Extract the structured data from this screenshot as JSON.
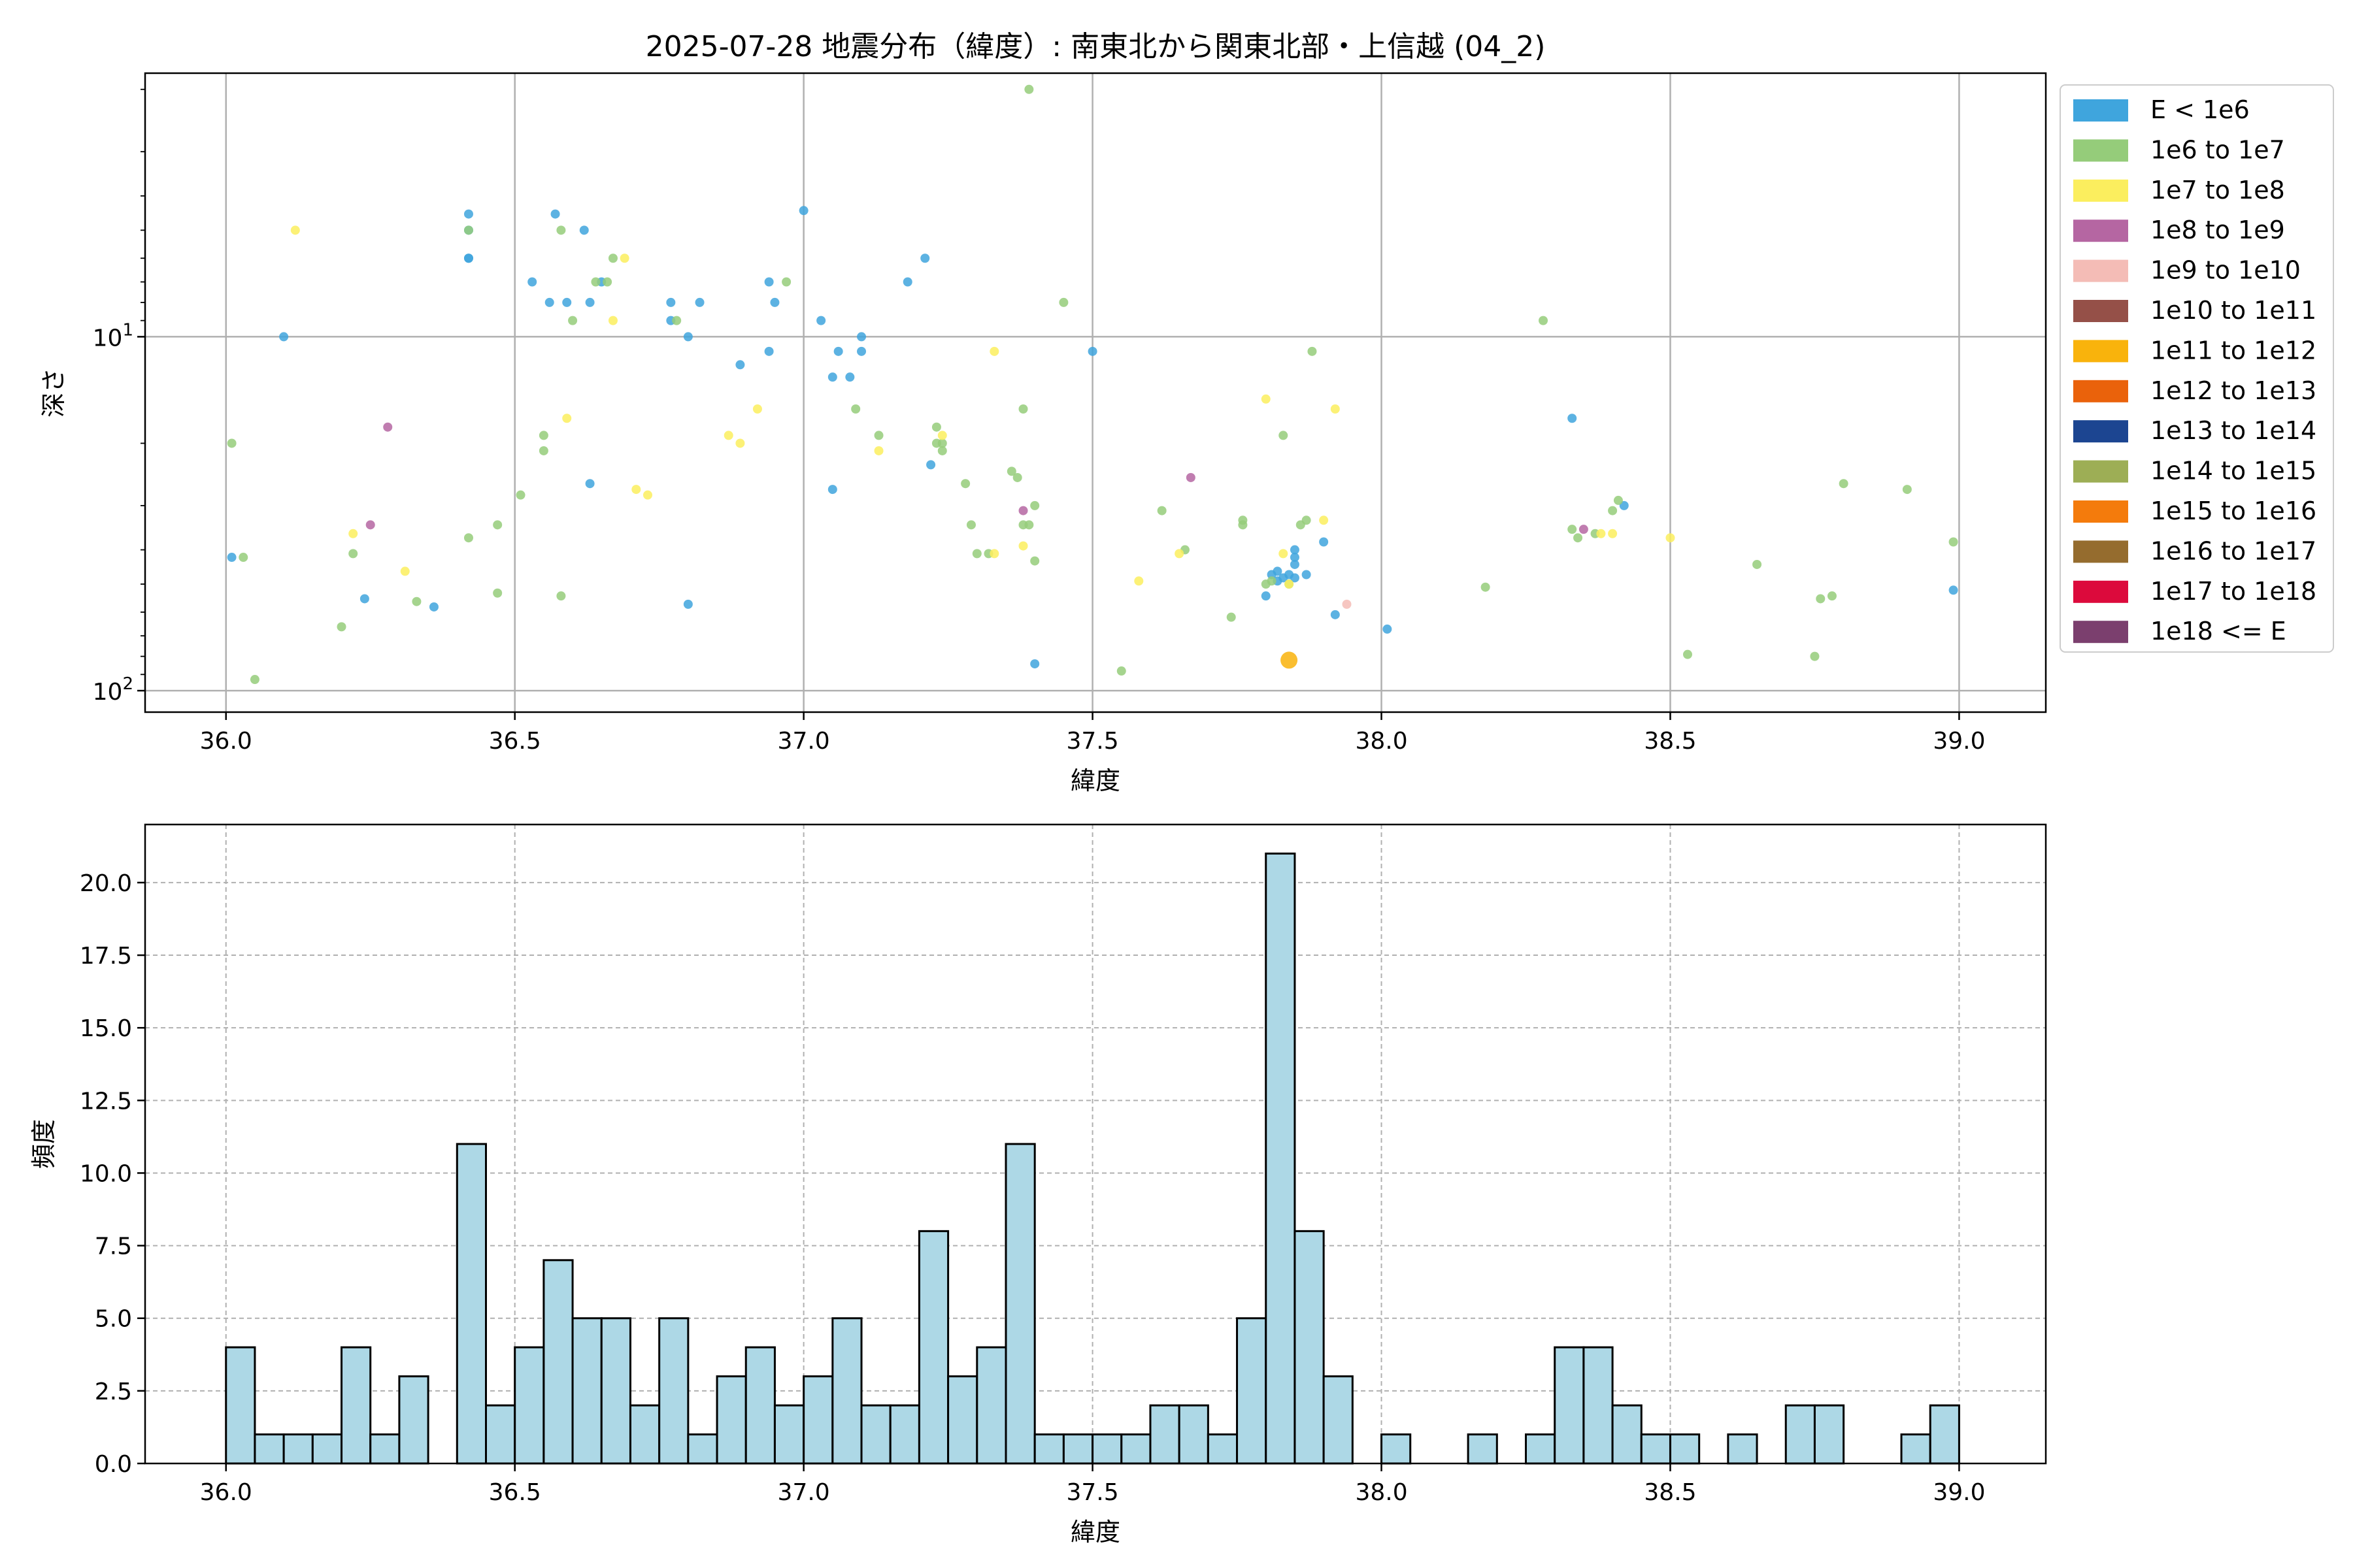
{
  "chart_data": [
    {
      "type": "scatter",
      "title": "2025-07-28 地震分布（緯度）: 南東北から関東北部・上信越 (04_2)",
      "xlabel": "緯度",
      "ylabel": "深さ",
      "xlim": [
        35.86,
        39.15
      ],
      "xticks": [
        "36.0",
        "36.5",
        "37.0",
        "37.5",
        "38.0",
        "38.5",
        "39.0"
      ],
      "ylim": [
        115,
        1.8
      ],
      "yscale": "log",
      "y_inverted": true,
      "ytick_labels": [
        {
          "value": 10,
          "base": "10",
          "exp": "1"
        },
        {
          "value": 100,
          "base": "10",
          "exp": "2"
        }
      ],
      "grid": true,
      "legend": {
        "placement": "outside-right-top",
        "entries": [
          {
            "label": "E < 1e6",
            "color": "#3fa5dd"
          },
          {
            "label": "1e6 to 1e7",
            "color": "#95cc7a"
          },
          {
            "label": "1e7 to 1e8",
            "color": "#fbee5e"
          },
          {
            "label": "1e8 to 1e9",
            "color": "#b566a2"
          },
          {
            "label": "1e9 to 1e10",
            "color": "#f4bcb6"
          },
          {
            "label": "1e10 to 1e11",
            "color": "#955048"
          },
          {
            "label": "1e11 to 1e12",
            "color": "#f9b30c"
          },
          {
            "label": "1e12 to 1e13",
            "color": "#ea620b"
          },
          {
            "label": "1e13 to 1e14",
            "color": "#1c4591"
          },
          {
            "label": "1e14 to 1e15",
            "color": "#9dae55"
          },
          {
            "label": "1e15 to 1e16",
            "color": "#f47b0c"
          },
          {
            "label": "1e16 to 1e17",
            "color": "#956c2e"
          },
          {
            "label": "1e17 to 1e18",
            "color": "#dc0a3c"
          },
          {
            "label": "1e18 <= E",
            "color": "#7b3f6e"
          }
        ]
      },
      "series": [
        {
          "name": "E < 1e6",
          "color": "#3fa5dd",
          "points": [
            [
              36.01,
              42
            ],
            [
              36.1,
              10
            ],
            [
              36.24,
              55
            ],
            [
              36.36,
              58
            ],
            [
              36.42,
              4.5
            ],
            [
              36.42,
              5
            ],
            [
              36.42,
              6
            ],
            [
              36.42,
              6
            ],
            [
              36.53,
              7
            ],
            [
              36.56,
              8
            ],
            [
              36.57,
              4.5
            ],
            [
              36.59,
              8
            ],
            [
              36.62,
              5
            ],
            [
              36.63,
              8
            ],
            [
              36.63,
              26
            ],
            [
              36.65,
              7
            ],
            [
              36.77,
              8
            ],
            [
              36.77,
              9
            ],
            [
              36.8,
              10
            ],
            [
              36.8,
              57
            ],
            [
              36.82,
              8
            ],
            [
              36.89,
              12
            ],
            [
              36.94,
              11
            ],
            [
              36.94,
              7
            ],
            [
              36.95,
              8
            ],
            [
              37.0,
              4.4
            ],
            [
              37.03,
              9
            ],
            [
              37.05,
              13
            ],
            [
              37.05,
              27
            ],
            [
              37.06,
              11
            ],
            [
              37.08,
              13
            ],
            [
              37.1,
              10
            ],
            [
              37.1,
              11
            ],
            [
              37.18,
              7
            ],
            [
              37.21,
              6
            ],
            [
              37.22,
              23
            ],
            [
              37.4,
              84
            ],
            [
              37.5,
              11
            ],
            [
              37.8,
              54
            ],
            [
              37.81,
              47
            ],
            [
              37.82,
              49
            ],
            [
              37.82,
              46
            ],
            [
              37.83,
              48
            ],
            [
              37.84,
              47
            ],
            [
              37.85,
              48
            ],
            [
              37.85,
              42
            ],
            [
              37.85,
              44
            ],
            [
              37.85,
              40
            ],
            [
              37.87,
              47
            ],
            [
              37.9,
              38
            ],
            [
              37.92,
              61
            ],
            [
              38.01,
              67
            ],
            [
              38.33,
              17
            ],
            [
              38.42,
              30
            ],
            [
              38.99,
              52
            ]
          ]
        },
        {
          "name": "1e6 to 1e7",
          "color": "#95cc7a",
          "points": [
            [
              36.01,
              20
            ],
            [
              36.03,
              42
            ],
            [
              36.05,
              93
            ],
            [
              36.2,
              66
            ],
            [
              36.22,
              41
            ],
            [
              36.33,
              56
            ],
            [
              36.42,
              5
            ],
            [
              36.42,
              37
            ],
            [
              36.47,
              34
            ],
            [
              36.47,
              53
            ],
            [
              36.51,
              28
            ],
            [
              36.55,
              21
            ],
            [
              36.55,
              19
            ],
            [
              36.58,
              5
            ],
            [
              36.58,
              54
            ],
            [
              36.6,
              9
            ],
            [
              36.64,
              7
            ],
            [
              36.66,
              7
            ],
            [
              36.67,
              6
            ],
            [
              36.78,
              9
            ],
            [
              36.97,
              7
            ],
            [
              37.09,
              16
            ],
            [
              37.13,
              19
            ],
            [
              37.23,
              18
            ],
            [
              37.23,
              20
            ],
            [
              37.24,
              20
            ],
            [
              37.24,
              21
            ],
            [
              37.28,
              26
            ],
            [
              37.29,
              34
            ],
            [
              37.3,
              41
            ],
            [
              37.32,
              41
            ],
            [
              37.36,
              24
            ],
            [
              37.37,
              25
            ],
            [
              37.38,
              34
            ],
            [
              37.39,
              34
            ],
            [
              37.38,
              16
            ],
            [
              37.39,
              2
            ],
            [
              37.4,
              30
            ],
            [
              37.4,
              43
            ],
            [
              37.45,
              8
            ],
            [
              37.55,
              88
            ],
            [
              37.62,
              31
            ],
            [
              37.66,
              40
            ],
            [
              37.74,
              62
            ],
            [
              37.76,
              33
            ],
            [
              37.76,
              34
            ],
            [
              37.8,
              50
            ],
            [
              37.81,
              49
            ],
            [
              37.83,
              19
            ],
            [
              37.84,
              50
            ],
            [
              37.86,
              34
            ],
            [
              37.87,
              33
            ],
            [
              37.88,
              11
            ],
            [
              38.18,
              51
            ],
            [
              38.28,
              9
            ],
            [
              38.33,
              35
            ],
            [
              38.34,
              37
            ],
            [
              38.37,
              36
            ],
            [
              38.4,
              31
            ],
            [
              38.41,
              29
            ],
            [
              38.53,
              79
            ],
            [
              38.65,
              44
            ],
            [
              38.75,
              80
            ],
            [
              38.76,
              55
            ],
            [
              38.78,
              54
            ],
            [
              38.8,
              26
            ],
            [
              38.91,
              27
            ],
            [
              38.99,
              38
            ]
          ]
        },
        {
          "name": "1e7 to 1e8",
          "color": "#fbee5e",
          "points": [
            [
              36.12,
              5
            ],
            [
              36.22,
              36
            ],
            [
              36.31,
              46
            ],
            [
              36.59,
              17
            ],
            [
              36.67,
              9
            ],
            [
              36.69,
              6
            ],
            [
              36.71,
              27
            ],
            [
              36.73,
              28
            ],
            [
              36.87,
              19
            ],
            [
              36.89,
              20
            ],
            [
              36.92,
              16
            ],
            [
              37.13,
              21
            ],
            [
              37.24,
              19
            ],
            [
              37.33,
              11
            ],
            [
              37.33,
              41
            ],
            [
              37.38,
              39
            ],
            [
              37.58,
              49
            ],
            [
              37.65,
              41
            ],
            [
              37.8,
              15
            ],
            [
              37.83,
              41
            ],
            [
              37.84,
              50
            ],
            [
              37.9,
              33
            ],
            [
              37.92,
              16
            ],
            [
              38.38,
              36
            ],
            [
              38.4,
              36
            ],
            [
              38.5,
              37
            ]
          ]
        },
        {
          "name": "1e8 to 1e9",
          "color": "#b566a2",
          "points": [
            [
              36.25,
              34
            ],
            [
              36.28,
              18
            ],
            [
              37.38,
              31
            ],
            [
              37.67,
              25
            ],
            [
              38.35,
              35
            ]
          ]
        },
        {
          "name": "1e9 to 1e10",
          "color": "#f4bcb6",
          "points": [
            [
              37.94,
              57
            ]
          ]
        },
        {
          "name": "1e11 to 1e12",
          "color": "#f9b30c",
          "size": "large",
          "points": [
            [
              37.84,
              82
            ]
          ]
        }
      ]
    },
    {
      "type": "bar",
      "title": "",
      "xlabel": "緯度",
      "ylabel": "頻度",
      "xlim": [
        35.86,
        39.15
      ],
      "xticks": [
        "36.0",
        "36.5",
        "37.0",
        "37.5",
        "38.0",
        "38.5",
        "39.0"
      ],
      "ylim": [
        0,
        22
      ],
      "yticks": [
        "0.0",
        "2.5",
        "5.0",
        "7.5",
        "10.0",
        "12.5",
        "15.0",
        "17.5",
        "20.0"
      ],
      "grid": true,
      "color": "#add8e6",
      "edgecolor": "#000000",
      "bin_start": 36.0,
      "bin_width": 0.05,
      "values": [
        4,
        1,
        1,
        1,
        4,
        1,
        3,
        0,
        11,
        2,
        4,
        7,
        5,
        5,
        2,
        5,
        1,
        3,
        4,
        2,
        3,
        5,
        2,
        2,
        8,
        3,
        4,
        11,
        1,
        1,
        1,
        1,
        2,
        2,
        1,
        5,
        21,
        8,
        3,
        0,
        1,
        0,
        0,
        1,
        0,
        1,
        4,
        4,
        2,
        1,
        1,
        0,
        1,
        0,
        2,
        2,
        0,
        0,
        1,
        2
      ]
    }
  ]
}
